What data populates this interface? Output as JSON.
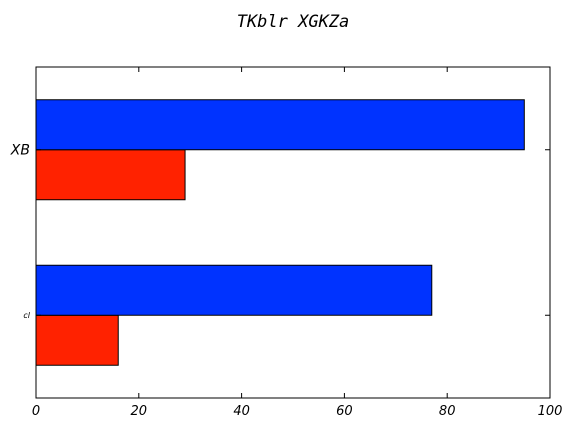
{
  "chart_data": {
    "type": "bar",
    "orientation": "horizontal",
    "title": "TKblr XGKZa",
    "xlabel": "",
    "ylabel": "",
    "xlim": [
      0,
      100
    ],
    "x_ticks": [
      0,
      20,
      40,
      60,
      80,
      100
    ],
    "categories": [
      "cl",
      "XB"
    ],
    "series": [
      {
        "color": "#ff2200",
        "values": [
          16,
          29
        ]
      },
      {
        "color": "#0033ff",
        "values": [
          77,
          95
        ]
      }
    ],
    "grid": false,
    "legend": "none"
  }
}
